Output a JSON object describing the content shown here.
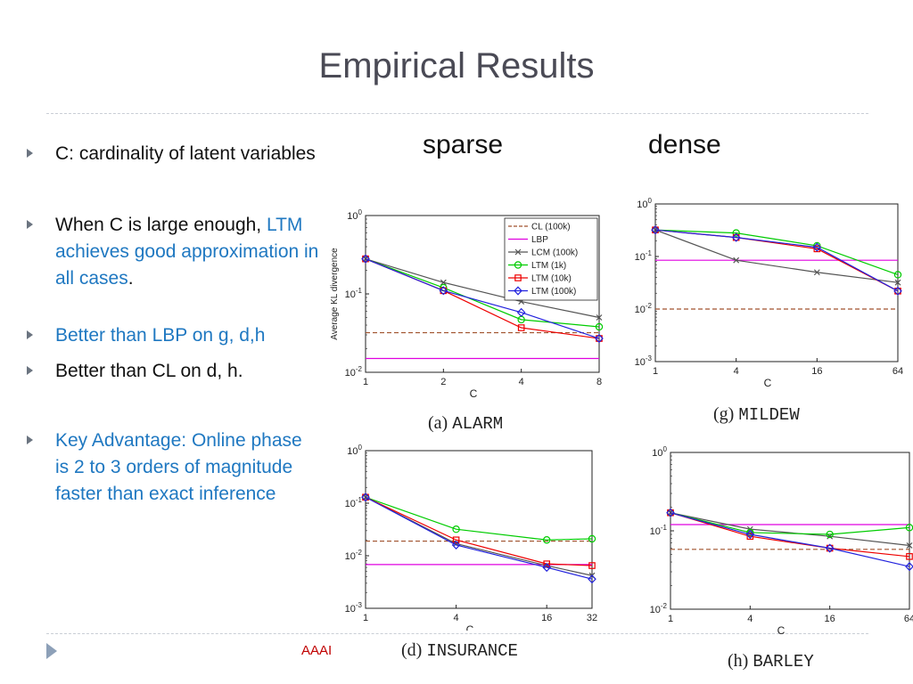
{
  "slide": {
    "title": "Empirical Results",
    "col_sparse": "sparse",
    "col_dense": "dense",
    "footer": "AAAI",
    "bullets": [
      {
        "segments": [
          {
            "text": "C: cardinality of latent variables",
            "color": "#111111"
          }
        ]
      },
      {
        "segments": [
          {
            "text": "When C is large enough, ",
            "color": "#111111"
          },
          {
            "text": "LTM achieves good approximation in all cases",
            "color": "#1f78c1"
          },
          {
            "text": ".",
            "color": "#111111"
          }
        ]
      },
      {
        "segments": [
          {
            "text": "Better than LBP on g, d,h",
            "color": "#1f78c1"
          }
        ]
      },
      {
        "segments": [
          {
            "text": "Better than CL on d, h.",
            "color": "#111111"
          }
        ]
      },
      {
        "segments": [
          {
            "text": "Key Advantage: Online phase is 2 to 3 orders of magnitude faster than exact inference",
            "color": "#1f78c1"
          }
        ]
      }
    ]
  },
  "chart_data": [
    {
      "type": "line",
      "caption_prefix": "(a)",
      "caption_name": "ALARM",
      "xlabel": "C",
      "ylabel": "Average KL divergence",
      "x_scale": "log",
      "y_scale": "log",
      "x": [
        1,
        2,
        4,
        8
      ],
      "x_tick_labels": [
        "1",
        "2",
        "4",
        "8"
      ],
      "ylim": [
        0.01,
        1
      ],
      "y_tick_labels": [
        "10^-2",
        "10^-1",
        "10^0"
      ],
      "legend": "top-right",
      "series": [
        {
          "name": "CL (100k)",
          "style": "dashed",
          "color": "#a0522d",
          "marker": "none",
          "values": [
            0.032,
            0.032,
            0.032,
            0.032
          ]
        },
        {
          "name": "LBP",
          "style": "solid",
          "color": "#e000e0",
          "marker": "none",
          "values": [
            0.015,
            0.015,
            0.015,
            0.015
          ]
        },
        {
          "name": "LCM (100k)",
          "style": "solid",
          "color": "#555555",
          "marker": "x",
          "values": [
            0.28,
            0.14,
            0.08,
            0.05
          ]
        },
        {
          "name": "LTM (1k)",
          "style": "solid",
          "color": "#00cc00",
          "marker": "circle",
          "values": [
            0.28,
            0.12,
            0.047,
            0.038
          ]
        },
        {
          "name": "LTM (10k)",
          "style": "solid",
          "color": "#ee0000",
          "marker": "square",
          "values": [
            0.28,
            0.11,
            0.037,
            0.027
          ]
        },
        {
          "name": "LTM (100k)",
          "style": "solid",
          "color": "#2222dd",
          "marker": "diamond",
          "values": [
            0.28,
            0.11,
            0.058,
            0.027
          ]
        }
      ]
    },
    {
      "type": "line",
      "caption_prefix": "(g)",
      "caption_name": "MILDEW",
      "xlabel": "C",
      "ylabel": "",
      "x_scale": "log",
      "y_scale": "log",
      "x": [
        1,
        4,
        16,
        64
      ],
      "x_tick_labels": [
        "1",
        "4",
        "16",
        "64"
      ],
      "ylim": [
        0.001,
        1
      ],
      "y_tick_labels": [
        "10^-3",
        "10^-2",
        "10^-1",
        "10^0"
      ],
      "legend": "none",
      "series": [
        {
          "name": "CL (100k)",
          "style": "dashed",
          "color": "#a0522d",
          "marker": "none",
          "values": [
            0.01,
            0.01,
            0.01,
            0.01
          ]
        },
        {
          "name": "LBP",
          "style": "solid",
          "color": "#e000e0",
          "marker": "none",
          "values": [
            0.085,
            0.085,
            0.085,
            0.085
          ]
        },
        {
          "name": "LCM (100k)",
          "style": "solid",
          "color": "#555555",
          "marker": "x",
          "values": [
            0.32,
            0.085,
            0.05,
            0.032
          ]
        },
        {
          "name": "LTM (1k)",
          "style": "solid",
          "color": "#00cc00",
          "marker": "circle",
          "values": [
            0.32,
            0.28,
            0.16,
            0.045
          ]
        },
        {
          "name": "LTM (10k)",
          "style": "solid",
          "color": "#ee0000",
          "marker": "square",
          "values": [
            0.32,
            0.23,
            0.14,
            0.022
          ]
        },
        {
          "name": "LTM (100k)",
          "style": "solid",
          "color": "#2222dd",
          "marker": "diamond",
          "values": [
            0.32,
            0.23,
            0.15,
            0.022
          ]
        }
      ]
    },
    {
      "type": "line",
      "caption_prefix": "(d)",
      "caption_name": "INSURANCE",
      "xlabel": "C",
      "ylabel": "",
      "x_scale": "log",
      "y_scale": "log",
      "x": [
        1,
        4,
        16,
        32
      ],
      "x_tick_labels": [
        "1",
        "4",
        "16",
        "32"
      ],
      "ylim": [
        0.001,
        1
      ],
      "y_tick_labels": [
        "10^-3",
        "10^-2",
        "10^-1",
        "10^0"
      ],
      "legend": "none",
      "series": [
        {
          "name": "CL (100k)",
          "style": "dashed",
          "color": "#a0522d",
          "marker": "none",
          "values": [
            0.019,
            0.019,
            0.019,
            0.019
          ]
        },
        {
          "name": "LBP",
          "style": "solid",
          "color": "#e000e0",
          "marker": "none",
          "values": [
            0.0068,
            0.0068,
            0.0068,
            0.0068
          ]
        },
        {
          "name": "LCM (100k)",
          "style": "solid",
          "color": "#555555",
          "marker": "x",
          "values": [
            0.13,
            0.017,
            0.0065,
            0.0042
          ]
        },
        {
          "name": "LTM (1k)",
          "style": "solid",
          "color": "#00cc00",
          "marker": "circle",
          "values": [
            0.13,
            0.032,
            0.02,
            0.021
          ]
        },
        {
          "name": "LTM (10k)",
          "style": "solid",
          "color": "#ee0000",
          "marker": "square",
          "values": [
            0.13,
            0.02,
            0.007,
            0.0065
          ]
        },
        {
          "name": "LTM (100k)",
          "style": "solid",
          "color": "#2222dd",
          "marker": "diamond",
          "values": [
            0.13,
            0.016,
            0.006,
            0.0036
          ]
        }
      ]
    },
    {
      "type": "line",
      "caption_prefix": "(h)",
      "caption_name": "BARLEY",
      "xlabel": "C",
      "ylabel": "",
      "x_scale": "log",
      "y_scale": "log",
      "x": [
        1,
        4,
        16,
        64
      ],
      "x_tick_labels": [
        "1",
        "4",
        "16",
        "64"
      ],
      "ylim": [
        0.01,
        1
      ],
      "y_tick_labels": [
        "10^-2",
        "10^-1",
        "10^0"
      ],
      "legend": "none",
      "series": [
        {
          "name": "CL (100k)",
          "style": "dashed",
          "color": "#a0522d",
          "marker": "none",
          "values": [
            0.058,
            0.058,
            0.058,
            0.058
          ]
        },
        {
          "name": "LBP",
          "style": "solid",
          "color": "#e000e0",
          "marker": "none",
          "values": [
            0.12,
            0.12,
            0.12,
            0.12
          ]
        },
        {
          "name": "LCM (100k)",
          "style": "solid",
          "color": "#555555",
          "marker": "x",
          "values": [
            0.17,
            0.105,
            0.085,
            0.065
          ]
        },
        {
          "name": "LTM (1k)",
          "style": "solid",
          "color": "#00cc00",
          "marker": "circle",
          "values": [
            0.17,
            0.095,
            0.09,
            0.11
          ]
        },
        {
          "name": "LTM (10k)",
          "style": "solid",
          "color": "#ee0000",
          "marker": "square",
          "values": [
            0.17,
            0.085,
            0.06,
            0.047
          ]
        },
        {
          "name": "LTM (100k)",
          "style": "solid",
          "color": "#2222dd",
          "marker": "diamond",
          "values": [
            0.17,
            0.09,
            0.06,
            0.035
          ]
        }
      ]
    }
  ]
}
